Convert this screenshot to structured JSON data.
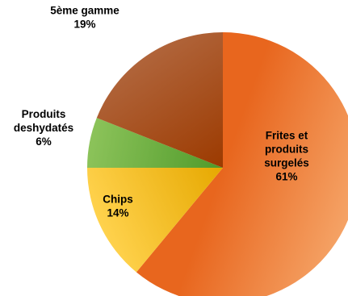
{
  "chart_data": {
    "type": "pie",
    "title": "",
    "start_angle_deg": 0,
    "direction": "clockwise",
    "legend": "none",
    "slices": [
      {
        "label_lines": [
          "Frites et",
          "produits",
          "surgelés"
        ],
        "value": 61,
        "percent_label": "61%",
        "color_light": "#f5a366",
        "color_dark": "#e8661e"
      },
      {
        "label_lines": [
          "Chips"
        ],
        "value": 14,
        "percent_label": "14%",
        "color_light": "#ffd24d",
        "color_dark": "#e6a800"
      },
      {
        "label_lines": [
          "Produits",
          "deshydatés"
        ],
        "value": 6,
        "percent_label": "6%",
        "color_light": "#8cc35a",
        "color_dark": "#4f9a2a"
      },
      {
        "label_lines": [
          "5ème gamme"
        ],
        "value": 19,
        "percent_label": "19%",
        "color_light": "#b0643a",
        "color_dark": "#9c3a00"
      }
    ]
  }
}
